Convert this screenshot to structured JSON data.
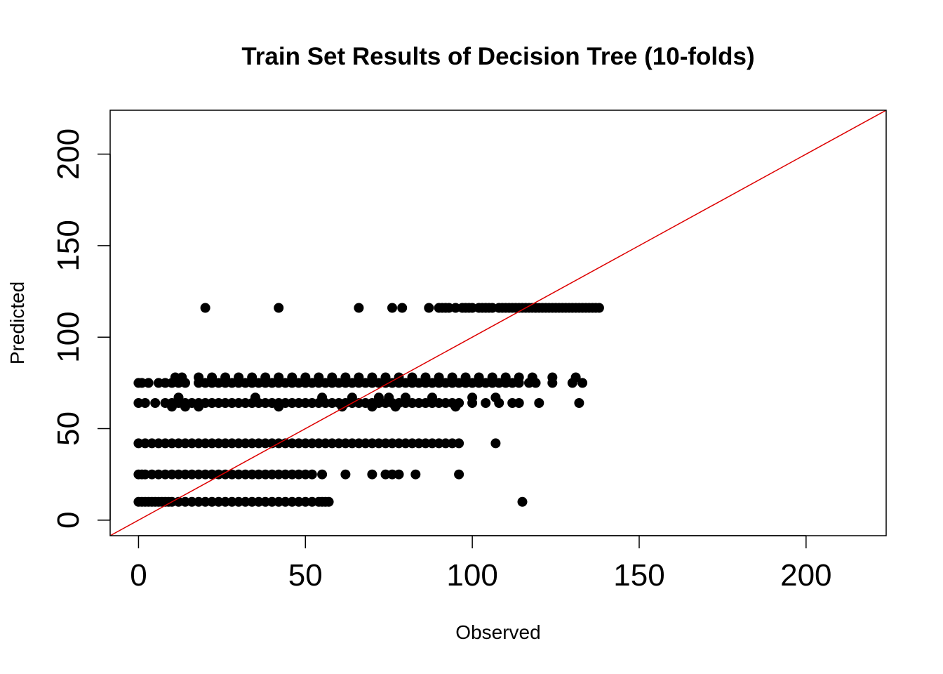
{
  "chart_data": {
    "type": "scatter",
    "title": "Train Set Results of Decision Tree (10-folds)",
    "xlabel": "Observed",
    "ylabel": "Predicted",
    "xlim": [
      -8.5,
      224
    ],
    "ylim": [
      -8.5,
      224
    ],
    "xticks": [
      "0",
      "50",
      "100",
      "150",
      "200"
    ],
    "yticks": [
      "0",
      "50",
      "100",
      "150",
      "200"
    ],
    "grid": false,
    "legend": "none",
    "reference_line": {
      "slope": 1,
      "intercept": 0,
      "color": "#dd0000"
    },
    "point_color": "#000000",
    "series": [
      {
        "x": [
          0,
          1,
          2,
          3,
          4,
          5,
          6,
          7,
          8,
          9,
          10,
          12,
          14,
          16,
          18,
          20,
          22,
          24,
          26,
          28,
          30,
          32,
          34,
          36,
          38,
          40,
          42,
          44,
          46,
          48,
          50,
          52,
          54,
          55,
          56,
          57,
          115
        ],
        "y": [
          10,
          10,
          10,
          10,
          10,
          10,
          10,
          10,
          10,
          10,
          10,
          10,
          10,
          10,
          10,
          10,
          10,
          10,
          10,
          10,
          10,
          10,
          10,
          10,
          10,
          10,
          10,
          10,
          10,
          10,
          10,
          10,
          10,
          10,
          10,
          10,
          10
        ]
      },
      {
        "x": [
          0,
          1,
          2,
          4,
          6,
          8,
          10,
          12,
          14,
          16,
          18,
          20,
          22,
          24,
          26,
          28,
          30,
          32,
          34,
          36,
          38,
          40,
          42,
          44,
          46,
          48,
          50,
          52,
          55,
          62,
          70,
          74,
          76,
          78,
          83,
          96
        ],
        "y": [
          25,
          25,
          25,
          25,
          25,
          25,
          25,
          25,
          25,
          25,
          25,
          25,
          25,
          25,
          25,
          25,
          25,
          25,
          25,
          25,
          25,
          25,
          25,
          25,
          25,
          25,
          25,
          25,
          25,
          25,
          25,
          25,
          25,
          25,
          25,
          25
        ]
      },
      {
        "x": [
          0,
          2,
          4,
          6,
          8,
          10,
          12,
          14,
          16,
          18,
          20,
          22,
          24,
          26,
          28,
          30,
          32,
          34,
          36,
          38,
          40,
          42,
          44,
          46,
          48,
          50,
          52,
          54,
          56,
          58,
          60,
          62,
          64,
          66,
          68,
          70,
          72,
          74,
          76,
          78,
          80,
          82,
          84,
          86,
          88,
          90,
          92,
          94,
          96,
          107
        ],
        "y": [
          42,
          42,
          42,
          42,
          42,
          42,
          42,
          42,
          42,
          42,
          42,
          42,
          42,
          42,
          42,
          42,
          42,
          42,
          42,
          42,
          42,
          42,
          42,
          42,
          42,
          42,
          42,
          42,
          42,
          42,
          42,
          42,
          42,
          42,
          42,
          42,
          42,
          42,
          42,
          42,
          42,
          42,
          42,
          42,
          42,
          42,
          42,
          42,
          42,
          42
        ]
      },
      {
        "x": [
          0,
          2,
          5,
          8,
          10,
          12,
          14,
          16,
          18,
          20,
          22,
          24,
          26,
          28,
          30,
          32,
          34,
          36,
          38,
          40,
          42,
          44,
          46,
          48,
          50,
          52,
          54,
          56,
          58,
          60,
          62,
          64,
          66,
          68,
          70,
          72,
          74,
          76,
          78,
          80,
          82,
          84,
          86,
          88,
          90,
          92,
          94,
          96,
          100,
          104,
          108,
          112,
          114,
          120,
          132
        ],
        "y": [
          64,
          64,
          64,
          64,
          64,
          64,
          64,
          64,
          64,
          64,
          64,
          64,
          64,
          64,
          64,
          64,
          64,
          64,
          64,
          64,
          64,
          64,
          64,
          64,
          64,
          64,
          64,
          64,
          64,
          64,
          64,
          64,
          64,
          64,
          64,
          64,
          64,
          64,
          64,
          64,
          64,
          64,
          64,
          64,
          64,
          64,
          64,
          64,
          64,
          64,
          64,
          64,
          64,
          64,
          64
        ]
      },
      {
        "x": [
          10,
          12,
          14,
          18,
          35,
          42,
          55,
          61,
          64,
          70,
          72,
          75,
          77,
          80,
          88,
          95,
          100,
          107
        ],
        "y": [
          62,
          67,
          62,
          62,
          67,
          62,
          67,
          62,
          67,
          62,
          67,
          67,
          62,
          67,
          67,
          62,
          67,
          67
        ]
      },
      {
        "x": [
          0,
          1,
          3,
          6,
          8,
          10,
          12,
          14,
          18,
          20,
          22,
          24,
          26,
          28,
          30,
          32,
          34,
          36,
          38,
          40,
          42,
          44,
          46,
          48,
          50,
          52,
          54,
          56,
          58,
          60,
          62,
          64,
          66,
          68,
          70,
          72,
          74,
          76,
          78,
          80,
          82,
          84,
          86,
          88,
          90,
          92,
          94,
          96,
          98,
          100,
          102,
          104,
          106,
          108,
          110,
          112,
          114,
          117,
          119,
          124,
          130,
          133
        ],
        "y": [
          75,
          75,
          75,
          75,
          75,
          75,
          75,
          75,
          75,
          75,
          75,
          75,
          75,
          75,
          75,
          75,
          75,
          75,
          75,
          75,
          75,
          75,
          75,
          75,
          75,
          75,
          75,
          75,
          75,
          75,
          75,
          75,
          75,
          75,
          75,
          75,
          75,
          75,
          75,
          75,
          75,
          75,
          75,
          75,
          75,
          75,
          75,
          75,
          75,
          75,
          75,
          75,
          75,
          75,
          75,
          75,
          75,
          75,
          75,
          75,
          75,
          75
        ]
      },
      {
        "x": [
          11,
          13,
          18,
          22,
          26,
          30,
          34,
          38,
          42,
          46,
          50,
          54,
          58,
          62,
          66,
          70,
          74,
          78,
          82,
          86,
          90,
          94,
          98,
          102,
          106,
          110,
          114,
          118,
          124,
          131
        ],
        "y": [
          78,
          78,
          78,
          78,
          78,
          78,
          78,
          78,
          78,
          78,
          78,
          78,
          78,
          78,
          78,
          78,
          78,
          78,
          78,
          78,
          78,
          78,
          78,
          78,
          78,
          78,
          78,
          78,
          78,
          78
        ]
      },
      {
        "x": [
          20,
          42,
          66,
          76,
          79,
          87,
          90,
          91,
          92,
          93,
          95,
          97,
          98,
          99,
          100,
          102,
          103,
          104,
          105,
          106,
          108,
          109,
          110,
          111,
          112,
          113,
          114,
          115,
          116,
          117,
          118,
          119,
          120,
          121,
          122,
          123,
          124,
          125,
          126,
          127,
          128,
          129,
          130,
          131,
          132,
          133,
          134,
          135,
          136,
          137,
          138
        ],
        "y": [
          116,
          116,
          116,
          116,
          116,
          116,
          116,
          116,
          116,
          116,
          116,
          116,
          116,
          116,
          116,
          116,
          116,
          116,
          116,
          116,
          116,
          116,
          116,
          116,
          116,
          116,
          116,
          116,
          116,
          116,
          116,
          116,
          116,
          116,
          116,
          116,
          116,
          116,
          116,
          116,
          116,
          116,
          116,
          116,
          116,
          116,
          116,
          116,
          116,
          116,
          116
        ]
      }
    ]
  }
}
